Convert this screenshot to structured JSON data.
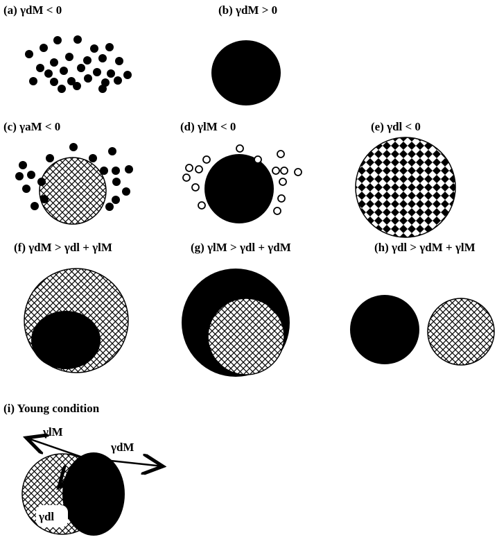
{
  "panels": [
    {
      "label": "(a) γdM < 0"
    },
    {
      "label": "(b) γdM > 0"
    },
    {
      "label": "(c) γaM < 0"
    },
    {
      "label": "(d) γlM < 0"
    },
    {
      "label": "(e) γdl < 0"
    },
    {
      "label": "(f) γdM > γdl + γlM"
    },
    {
      "label": "(g) γlM > γdl + γdM"
    },
    {
      "label": "(h) γdl > γdM + γlM"
    },
    {
      "label": "(i) Young condition",
      "annotations": [
        "γlM",
        "γdM",
        "γdl"
      ]
    }
  ]
}
